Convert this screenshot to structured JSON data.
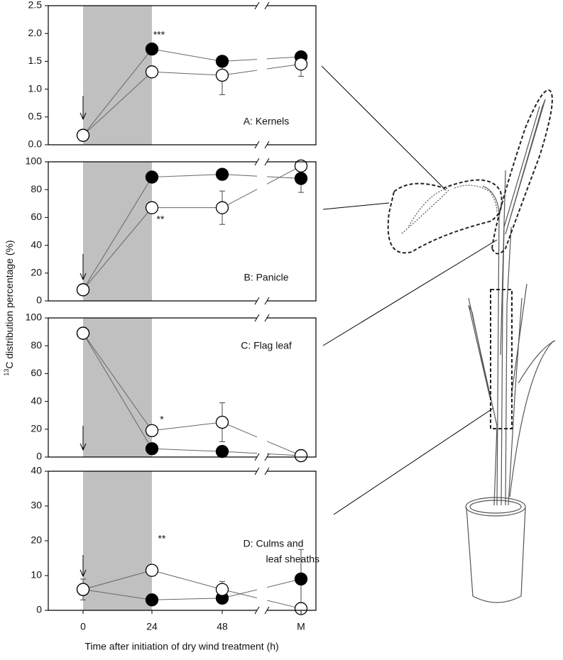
{
  "ylabel": {
    "sup": "13",
    "text": "C distribution percentage (%)"
  },
  "xlabel": "Time after initiation of dry wind treatment (h)",
  "x": [
    "0",
    "24",
    "48",
    "M"
  ],
  "chart_data": [
    {
      "type": "line",
      "panel_label": [
        "A: Kernels"
      ],
      "annotations": [
        "***"
      ],
      "ylim": [
        0,
        2.5
      ],
      "yticks": [
        {
          "value": 0,
          "label": "0.0"
        },
        0.5,
        {
          "value": 1,
          "label": "1.0"
        },
        1.5,
        {
          "value": 2,
          "label": "2.0"
        },
        2.5
      ],
      "series": [
        {
          "color": "#000000",
          "values": [
            0.17,
            1.72,
            1.5,
            1.58
          ],
          "errors": [
            null,
            null,
            null,
            null
          ]
        },
        {
          "color": "#ffffff",
          "values": [
            0.17,
            1.31,
            1.25,
            1.45
          ],
          "errors": [
            null,
            null,
            0.35,
            0.22
          ]
        }
      ]
    },
    {
      "type": "line",
      "panel_label": [
        "B: Panicle"
      ],
      "annotations": [
        "**"
      ],
      "ylim": [
        0,
        100
      ],
      "yticks": [
        0,
        20,
        40,
        60,
        80,
        100
      ],
      "series": [
        {
          "color": "#000000",
          "values": [
            8,
            89,
            91,
            88
          ],
          "errors": [
            null,
            null,
            null,
            10
          ]
        },
        {
          "color": "#ffffff",
          "values": [
            8,
            67,
            67,
            97
          ],
          "errors": [
            null,
            null,
            12,
            null
          ]
        }
      ]
    },
    {
      "type": "line",
      "panel_label": [
        "C: Flag leaf"
      ],
      "annotations": [
        "*"
      ],
      "ylim": [
        0,
        100
      ],
      "yticks": [
        0,
        20,
        40,
        60,
        80,
        100
      ],
      "series": [
        {
          "color": "#000000",
          "values": [
            89,
            6,
            4,
            1
          ],
          "errors": [
            null,
            null,
            null,
            null
          ]
        },
        {
          "color": "#ffffff",
          "values": [
            89,
            19,
            25,
            1
          ],
          "errors": [
            null,
            null,
            14,
            null
          ]
        }
      ]
    },
    {
      "type": "line",
      "panel_label": [
        "D: Culms and",
        "leaf sheaths"
      ],
      "annotations": [
        "**"
      ],
      "ylim": [
        0,
        40
      ],
      "yticks": [
        0,
        10,
        20,
        30,
        40
      ],
      "series": [
        {
          "color": "#000000",
          "values": [
            6,
            3,
            3.5,
            9
          ],
          "errors": [
            null,
            null,
            null,
            8.5
          ]
        },
        {
          "color": "#ffffff",
          "values": [
            6,
            11.5,
            6,
            0.5
          ],
          "errors": [
            3,
            null,
            2.3,
            null
          ]
        }
      ]
    }
  ]
}
